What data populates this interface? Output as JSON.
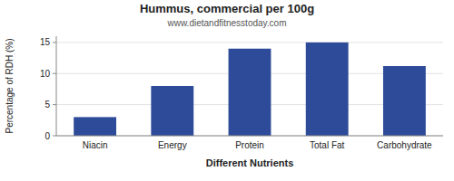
{
  "chart_data": {
    "type": "bar",
    "title": "Hummus, commercial per 100g",
    "subtitle": "www.dietandfitnesstoday.com",
    "categories": [
      "Niacin",
      "Energy",
      "Protein",
      "Total Fat",
      "Carbohydrate"
    ],
    "values": [
      3.0,
      8.0,
      14.0,
      15.0,
      11.2
    ],
    "color": "#2e4b9a",
    "xlabel": "Different Nutrients",
    "ylabel": "Percentage of RDH (%)",
    "ylim": [
      0,
      16
    ],
    "yticks": [
      0,
      5,
      10,
      15
    ],
    "grid": true
  }
}
